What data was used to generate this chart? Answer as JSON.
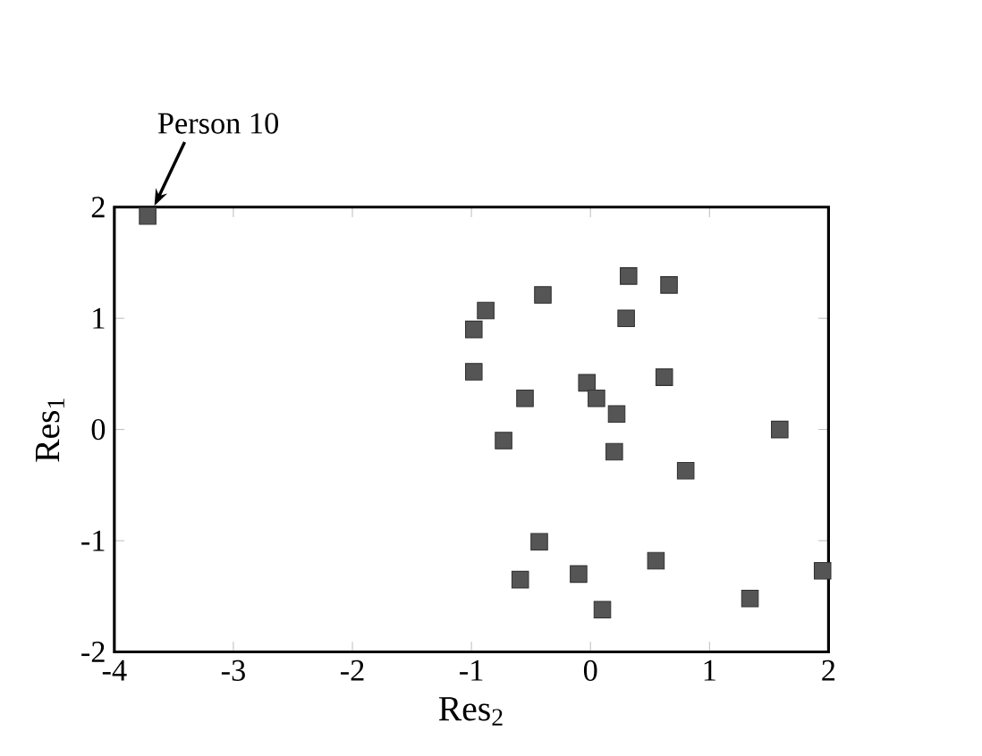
{
  "chart_data": {
    "type": "scatter",
    "xlabel": "Res$_{2}$",
    "ylabel": "Res$_{1}$",
    "xlim": [
      -4,
      2
    ],
    "ylim": [
      -2,
      2
    ],
    "xticks": [
      -4,
      -3,
      -2,
      -1,
      0,
      1,
      2
    ],
    "yticks": [
      -2,
      -1,
      0,
      1,
      2
    ],
    "marker": "square",
    "annotations": [
      {
        "text": "Person 10",
        "x": -3.72,
        "y": 1.92
      }
    ],
    "series": [
      {
        "color": "#555555",
        "x": [
          -3.72,
          0.32,
          0.66,
          -0.4,
          -0.88,
          -0.98,
          0.3,
          -0.98,
          -0.03,
          0.62,
          -0.55,
          0.05,
          0.22,
          1.59,
          -0.73,
          0.2,
          0.8,
          -0.43,
          0.55,
          -0.59,
          -0.1,
          0.1,
          1.34,
          1.95
        ],
        "values": [
          1.92,
          1.38,
          1.3,
          1.21,
          1.07,
          0.9,
          1.0,
          0.52,
          0.42,
          0.47,
          0.28,
          0.28,
          0.14,
          0.0,
          -0.1,
          -0.2,
          -0.37,
          -1.01,
          -1.18,
          -1.35,
          -1.3,
          -1.62,
          -1.52,
          -1.27
        ]
      }
    ]
  }
}
